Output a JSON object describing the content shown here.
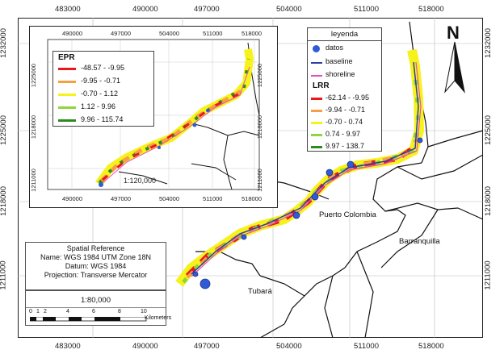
{
  "top_ticks": [
    "483000",
    "490000",
    "497000",
    "504000",
    "511000",
    "518000"
  ],
  "bottom_ticks": [
    "483000",
    "490000",
    "497000",
    "504000",
    "511000",
    "518000"
  ],
  "left_ticks": [
    "1232000",
    "1225000",
    "1218000",
    "1211000"
  ],
  "right_ticks": [
    "1232000",
    "1225000",
    "1218000",
    "1211000"
  ],
  "inset": {
    "top_ticks": [
      "490000",
      "497000",
      "504000",
      "511000",
      "518000"
    ],
    "bottom_ticks": [
      "490000",
      "497000",
      "504000",
      "511000",
      "518000"
    ],
    "left_ticks": [
      "1225000",
      "1218000",
      "1211000"
    ],
    "right_ticks": [
      "1225000",
      "1218000",
      "1211000"
    ],
    "scale": "1:120,000",
    "epr_title": "EPR",
    "epr_classes": [
      {
        "label": "-48.57 - -9.95",
        "color": "#e8181c"
      },
      {
        "label": "-9.95 - -0.71",
        "color": "#f7a043"
      },
      {
        "label": "-0.70 - 1.12",
        "color": "#f6f21c"
      },
      {
        "label": "1.12 - 9.96",
        "color": "#8ed63a"
      },
      {
        "label": "9.96 - 115.74",
        "color": "#2c8a1e"
      }
    ]
  },
  "legend": {
    "title": "leyenda",
    "datos": "datos",
    "baseline": "baseline",
    "shoreline": "shoreline",
    "datos_color": "#2f5cd6",
    "baseline_color": "#2c3ea6",
    "shoreline_color": "#e34fc2",
    "lrr_title": "LRR",
    "lrr_classes": [
      {
        "label": "-62.14 - -9.95",
        "color": "#e8181c"
      },
      {
        "label": "-9.94 - -0.71",
        "color": "#f7a043"
      },
      {
        "label": "-0.70 - 0.74",
        "color": "#f6f21c"
      },
      {
        "label": "0.74 - 9.97",
        "color": "#8ed63a"
      },
      {
        "label": "9.97 - 138.7",
        "color": "#2c8a1e"
      }
    ]
  },
  "north_label": "N",
  "places": {
    "puerto": "Puerto Colombia",
    "barranquilla": "Barranquilla",
    "tubara": "Tubará"
  },
  "spatial_reference": {
    "title": "Spatial Reference",
    "name": "Name: WGS 1984 UTM Zone 18N",
    "datum": "Datum: WGS 1984",
    "projection": "Projection: Transverse Mercator"
  },
  "scale": {
    "ratio": "1:80,000",
    "ticks": [
      "0",
      "1",
      "2",
      "4",
      "6",
      "8",
      "10"
    ],
    "unit": "Kilometers"
  }
}
